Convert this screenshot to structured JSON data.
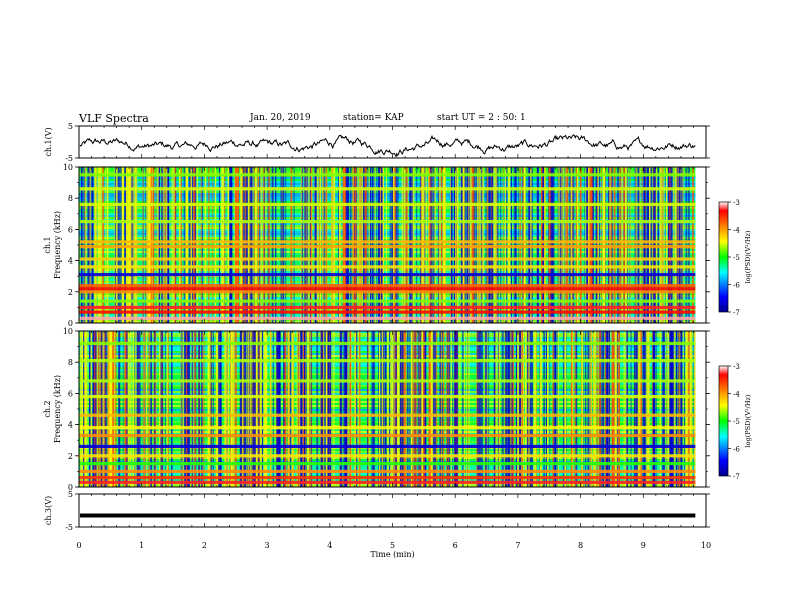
{
  "header": {
    "title": "VLF Spectra",
    "date": "Jan. 20, 2019",
    "station": "station= KAP",
    "start_ut": "start UT = 2 : 50: 1"
  },
  "chart_data": [
    {
      "type": "line",
      "panel": "ch1-waveform",
      "ylabel": "ch.1(V)",
      "ylim": [
        -5,
        5
      ],
      "yticks": [
        "5",
        "-5"
      ],
      "xlim": [
        0,
        10
      ],
      "data_extent_min": 9.83,
      "series": [
        {
          "color": "#000000",
          "description": "noisy voltage trace fluctuating between about -4 and 2 V"
        }
      ]
    },
    {
      "type": "heatmap",
      "panel": "ch1-spectrogram",
      "ylabel": "ch.1\nFrequency (kHz)",
      "ylim": [
        0,
        10
      ],
      "yticks": [
        "0",
        "2",
        "4",
        "6",
        "8",
        "10"
      ],
      "xlim": [
        0,
        10
      ],
      "data_extent_min": 9.83,
      "colorbar": {
        "label": "log(PSD)(V²/Hz)",
        "range": [
          -7,
          -3
        ],
        "ticks": [
          "-3",
          "-4",
          "-5",
          "-6",
          "-7"
        ],
        "colormap": [
          "#00008f",
          "#0000ff",
          "#00ffff",
          "#00ff00",
          "#ffff00",
          "#ff8000",
          "#ff0000",
          "#ffffff"
        ]
      },
      "bands_khz": [
        {
          "f": 0.3,
          "level": -3.2
        },
        {
          "f": 0.7,
          "level": -3.6
        },
        {
          "f": 1.0,
          "level": -3.5
        },
        {
          "f": 1.4,
          "level": -5.0
        },
        {
          "f": 2.0,
          "level": -4.2
        },
        {
          "f": 2.2,
          "level": -3.6
        },
        {
          "f": 2.4,
          "level": -4.0
        },
        {
          "f": 3.1,
          "level": -6.6
        },
        {
          "f": 3.6,
          "level": -4.6
        },
        {
          "f": 4.1,
          "level": -4.5
        },
        {
          "f": 4.9,
          "level": -4.3
        },
        {
          "f": 5.2,
          "level": -4.4
        },
        {
          "f": 6.5,
          "level": -4.9
        },
        {
          "f": 7.6,
          "level": -4.8
        },
        {
          "f": 8.6,
          "level": -4.8
        },
        {
          "f": 9.5,
          "level": -5.0
        }
      ]
    },
    {
      "type": "heatmap",
      "panel": "ch2-spectrogram",
      "ylabel": "ch.2\nFrequency (kHz)",
      "ylim": [
        0,
        10
      ],
      "yticks": [
        "0",
        "2",
        "4",
        "6",
        "8",
        "10"
      ],
      "xlim": [
        0,
        10
      ],
      "data_extent_min": 9.83,
      "colorbar": {
        "label": "log(PSD)(V²/Hz)",
        "range": [
          -7,
          -3
        ],
        "ticks": [
          "-3",
          "-4",
          "-5",
          "-6",
          "-7"
        ],
        "colormap": [
          "#00008f",
          "#0000ff",
          "#00ffff",
          "#00ff00",
          "#ffff00",
          "#ff8000",
          "#ff0000",
          "#ffffff"
        ]
      },
      "bands_khz": [
        {
          "f": 0.3,
          "level": -3.5
        },
        {
          "f": 0.6,
          "level": -3.8
        },
        {
          "f": 1.0,
          "level": -4.2
        },
        {
          "f": 1.5,
          "level": -5.2
        },
        {
          "f": 2.0,
          "level": -4.6
        },
        {
          "f": 2.6,
          "level": -6.6
        },
        {
          "f": 3.3,
          "level": -4.2
        },
        {
          "f": 3.8,
          "level": -4.7
        },
        {
          "f": 4.6,
          "level": -4.4
        },
        {
          "f": 5.8,
          "level": -4.8
        },
        {
          "f": 6.8,
          "level": -4.9
        },
        {
          "f": 8.1,
          "level": -4.9
        },
        {
          "f": 9.2,
          "level": -5.0
        }
      ]
    },
    {
      "type": "line",
      "panel": "ch3-waveform",
      "ylabel": "ch.3(V)",
      "ylim": [
        -5,
        5
      ],
      "yticks": [
        "5",
        "-5"
      ],
      "xlim": [
        0,
        10
      ],
      "xticks": [
        "0",
        "1",
        "2",
        "3",
        "4",
        "5",
        "6",
        "7",
        "8",
        "9",
        "10"
      ],
      "xlabel": "Time (min)",
      "data_extent_min": 9.83,
      "series": [
        {
          "color": "#000000",
          "values_constant": -1.5
        }
      ]
    }
  ]
}
